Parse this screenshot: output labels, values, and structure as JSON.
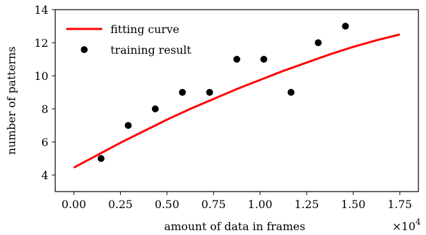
{
  "chart_data": {
    "type": "scatter",
    "title": "",
    "xlabel": "amount of data in frames",
    "ylabel": "number of patterns",
    "x_offset_label": "×10",
    "x_offset_exponent": "4",
    "xlim": [
      -0.1,
      1.85
    ],
    "ylim": [
      3,
      14
    ],
    "x_ticks": [
      0.0,
      0.25,
      0.5,
      0.75,
      1.0,
      1.25,
      1.5,
      1.75
    ],
    "x_tick_labels": [
      "0.00",
      "0.25",
      "0.50",
      "0.75",
      "1.00",
      "1.25",
      "1.50",
      "1.75"
    ],
    "y_ticks": [
      4,
      6,
      8,
      10,
      12,
      14
    ],
    "y_tick_labels": [
      "4",
      "6",
      "8",
      "10",
      "12",
      "14"
    ],
    "grid": false,
    "legend_position": "top-left",
    "series": [
      {
        "name": "fitting curve",
        "kind": "line",
        "color": "#ff0000",
        "x": [
          0.0,
          0.125,
          0.25,
          0.375,
          0.5,
          0.625,
          0.75,
          0.875,
          1.0,
          1.125,
          1.25,
          1.375,
          1.5,
          1.625,
          1.75
        ],
        "y": [
          4.45,
          5.2,
          5.95,
          6.65,
          7.35,
          8.0,
          8.6,
          9.2,
          9.75,
          10.3,
          10.8,
          11.3,
          11.75,
          12.15,
          12.5
        ]
      },
      {
        "name": "training result",
        "kind": "scatter",
        "color": "#000000",
        "x": [
          0.146,
          0.292,
          0.437,
          0.583,
          0.729,
          0.875,
          1.02,
          1.166,
          1.312,
          1.458
        ],
        "y": [
          5,
          7,
          8,
          9,
          9,
          11,
          11,
          9,
          12,
          13
        ]
      }
    ]
  }
}
